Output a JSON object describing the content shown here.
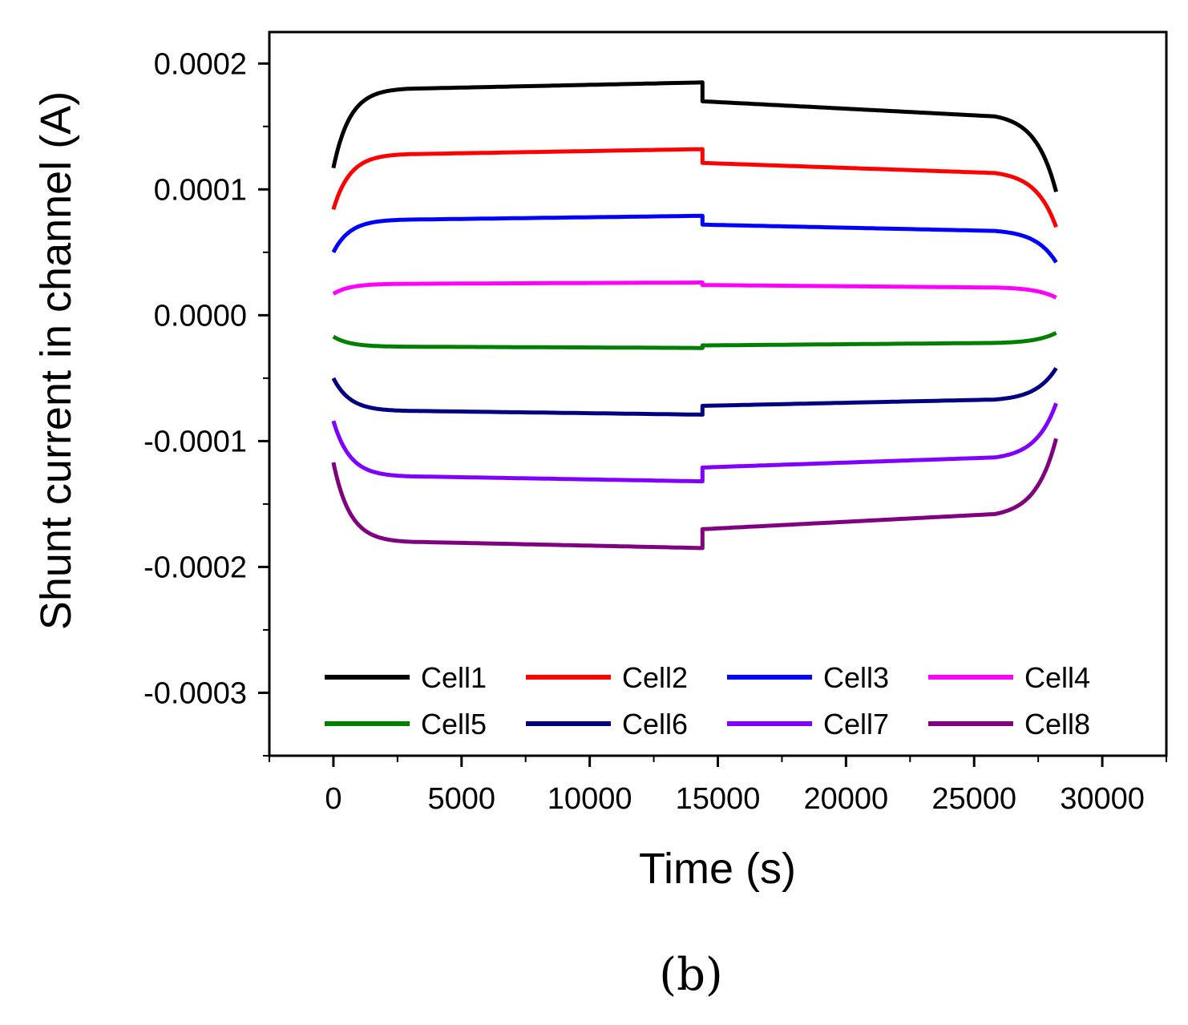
{
  "panel_label": "(b)",
  "chart_data": {
    "type": "line",
    "title": "",
    "xlabel": "Time (s)",
    "ylabel": "Shunt current in channel (A)",
    "xlim": [
      -2500,
      32500
    ],
    "ylim": [
      -0.00035,
      0.000225
    ],
    "x_ticks": [
      0,
      5000,
      10000,
      15000,
      20000,
      25000,
      30000
    ],
    "x_tick_labels": [
      "0",
      "5000",
      "10000",
      "15000",
      "20000",
      "25000",
      "30000"
    ],
    "y_ticks": [
      0.0002,
      0.0001,
      0.0,
      -0.0001,
      -0.0002,
      -0.0003
    ],
    "y_tick_labels": [
      "0.0002",
      "0.0001",
      "0.0000",
      "-0.0001",
      "-0.0002",
      "-0.0003"
    ],
    "grid": false,
    "legend_position": "bottom",
    "series": [
      {
        "name": "Cell1",
        "color": "#000000",
        "start": 0.000117,
        "plateau": 0.00018,
        "pre_switch": 0.000185,
        "post_switch": 0.00017,
        "late": 0.000158,
        "end": 9.8e-05
      },
      {
        "name": "Cell2",
        "color": "#ff0000",
        "start": 8.4e-05,
        "plateau": 0.000128,
        "pre_switch": 0.000132,
        "post_switch": 0.000121,
        "late": 0.000113,
        "end": 7e-05
      },
      {
        "name": "Cell3",
        "color": "#0000ff",
        "start": 5e-05,
        "plateau": 7.6e-05,
        "pre_switch": 7.9e-05,
        "post_switch": 7.2e-05,
        "late": 6.7e-05,
        "end": 4.2e-05
      },
      {
        "name": "Cell4",
        "color": "#ff00ff",
        "start": 1.7e-05,
        "plateau": 2.5e-05,
        "pre_switch": 2.6e-05,
        "post_switch": 2.4e-05,
        "late": 2.2e-05,
        "end": 1.4e-05
      },
      {
        "name": "Cell5",
        "color": "#008000",
        "start": -1.7e-05,
        "plateau": -2.5e-05,
        "pre_switch": -2.6e-05,
        "post_switch": -2.4e-05,
        "late": -2.2e-05,
        "end": -1.4e-05
      },
      {
        "name": "Cell6",
        "color": "#000080",
        "start": -5e-05,
        "plateau": -7.6e-05,
        "pre_switch": -7.9e-05,
        "post_switch": -7.2e-05,
        "late": -6.7e-05,
        "end": -4.2e-05
      },
      {
        "name": "Cell7",
        "color": "#8000ff",
        "start": -8.4e-05,
        "plateau": -0.000128,
        "pre_switch": -0.000132,
        "post_switch": -0.000121,
        "late": -0.000113,
        "end": -7e-05
      },
      {
        "name": "Cell8",
        "color": "#800080",
        "start": -0.000117,
        "plateau": -0.00018,
        "pre_switch": -0.000185,
        "post_switch": -0.00017,
        "late": -0.000158,
        "end": -9.8e-05
      }
    ],
    "time_points": {
      "rise_end": 3000,
      "switch": 14400,
      "late": 25800,
      "end": 28200
    }
  }
}
